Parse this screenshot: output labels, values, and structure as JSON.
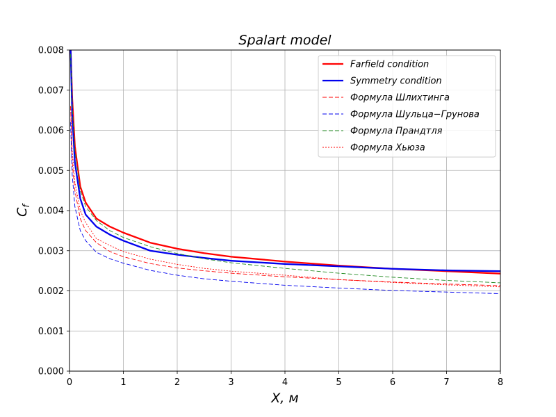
{
  "chart_data": {
    "type": "line",
    "title": "Spalart model",
    "xlabel": "X,  м",
    "ylabel_main": "C",
    "ylabel_sub": "f",
    "xlim": [
      0,
      8
    ],
    "ylim": [
      0,
      0.008
    ],
    "xticks": [
      "0",
      "1",
      "2",
      "3",
      "4",
      "5",
      "6",
      "7",
      "8"
    ],
    "yticks": [
      "0.000",
      "0.001",
      "0.002",
      "0.003",
      "0.004",
      "0.005",
      "0.006",
      "0.007",
      "0.008"
    ],
    "grid": true,
    "legend_position": "top-right",
    "series": [
      {
        "name": "Farfield condition",
        "color": "#ff0000",
        "style": "solid",
        "x": [
          0.02,
          0.05,
          0.1,
          0.2,
          0.3,
          0.5,
          0.75,
          1,
          1.5,
          2,
          2.5,
          3,
          4,
          5,
          6,
          7,
          8
        ],
        "y": [
          0.0081,
          0.0068,
          0.0056,
          0.0046,
          0.0042,
          0.0038,
          0.0036,
          0.00345,
          0.0032,
          0.00305,
          0.00294,
          0.00285,
          0.00273,
          0.00263,
          0.00255,
          0.00249,
          0.00243
        ]
      },
      {
        "name": "Symmetry condition",
        "color": "#0000ee",
        "style": "solid",
        "x": [
          0.02,
          0.05,
          0.1,
          0.2,
          0.3,
          0.5,
          0.75,
          1,
          1.5,
          2,
          2.5,
          3,
          4,
          5,
          6,
          7,
          8
        ],
        "y": [
          0.0081,
          0.0064,
          0.0052,
          0.0043,
          0.0039,
          0.0036,
          0.0034,
          0.00325,
          0.003,
          0.0029,
          0.00282,
          0.00275,
          0.00267,
          0.00261,
          0.00255,
          0.00251,
          0.00249
        ]
      },
      {
        "name": "Формула Шлихтинга",
        "color": "#ff0000",
        "style": "dashed",
        "x": [
          0.02,
          0.05,
          0.1,
          0.2,
          0.3,
          0.5,
          0.75,
          1,
          1.5,
          2,
          2.5,
          3,
          4,
          5,
          6,
          7,
          8
        ],
        "y": [
          0.0066,
          0.0052,
          0.0045,
          0.0038,
          0.0035,
          0.0032,
          0.00298,
          0.00285,
          0.00268,
          0.00257,
          0.0025,
          0.00244,
          0.00235,
          0.00228,
          0.00222,
          0.00217,
          0.00213
        ]
      },
      {
        "name": "Формула Шульца−Грунова",
        "color": "#0000ee",
        "style": "dashed",
        "x": [
          0.02,
          0.05,
          0.1,
          0.2,
          0.3,
          0.5,
          0.75,
          1,
          1.5,
          2,
          2.5,
          3,
          4,
          5,
          6,
          7,
          8
        ],
        "y": [
          0.0062,
          0.0049,
          0.0041,
          0.0035,
          0.00325,
          0.00296,
          0.0028,
          0.00269,
          0.00251,
          0.00239,
          0.0023,
          0.00224,
          0.00214,
          0.00207,
          0.00201,
          0.00197,
          0.00193
        ]
      },
      {
        "name": "Формула Прандтля",
        "color": "#228b22",
        "style": "dashed",
        "x": [
          0.02,
          0.05,
          0.1,
          0.2,
          0.3,
          0.5,
          0.75,
          1,
          1.5,
          2,
          2.5,
          3,
          4,
          5,
          6,
          7,
          8
        ],
        "y": [
          0.0079,
          0.0066,
          0.0055,
          0.0045,
          0.0041,
          0.00375,
          0.0035,
          0.00333,
          0.0031,
          0.00293,
          0.0028,
          0.0027,
          0.00256,
          0.00244,
          0.00234,
          0.00226,
          0.0022
        ]
      },
      {
        "name": "Формула Хьюза",
        "color": "#ff0000",
        "style": "dotted",
        "x": [
          0.02,
          0.05,
          0.1,
          0.2,
          0.3,
          0.5,
          0.75,
          1,
          1.5,
          2,
          2.5,
          3,
          4,
          5,
          6,
          7,
          8
        ],
        "y": [
          0.0066,
          0.0055,
          0.0047,
          0.004,
          0.0037,
          0.0033,
          0.00313,
          0.00298,
          0.00279,
          0.00266,
          0.00256,
          0.00249,
          0.00239,
          0.00228,
          0.00221,
          0.00215,
          0.0021
        ]
      }
    ]
  }
}
